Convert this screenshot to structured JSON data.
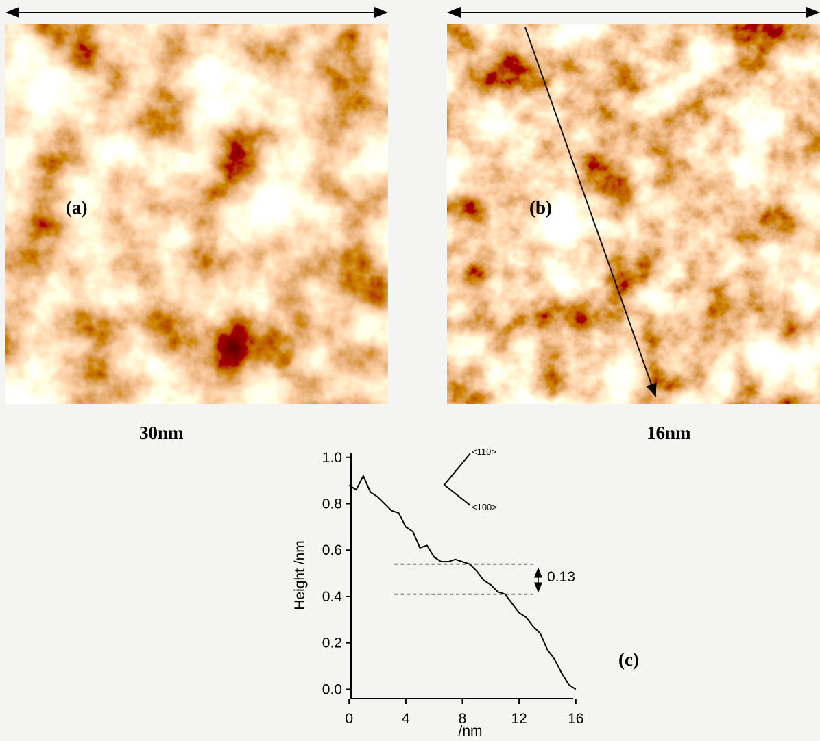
{
  "panels": [
    {
      "label": "(a)",
      "scale": "30nm"
    },
    {
      "label": "(b)",
      "scale": "16nm"
    }
  ],
  "chart_data": {
    "type": "line",
    "label": "(c)",
    "xlabel": "/nm",
    "ylabel": "Height /nm",
    "x": [
      0,
      0.5,
      1,
      1.5,
      2,
      2.5,
      3,
      3.5,
      4,
      4.5,
      5,
      5.5,
      6,
      6.5,
      7,
      7.5,
      8,
      8.5,
      9,
      9.5,
      10,
      10.5,
      11,
      11.5,
      12,
      12.5,
      13,
      13.5,
      14,
      14.5,
      15,
      15.5,
      16
    ],
    "series": [
      {
        "color": "#000000",
        "values": [
          0.88,
          0.86,
          0.92,
          0.85,
          0.83,
          0.8,
          0.77,
          0.76,
          0.7,
          0.68,
          0.61,
          0.62,
          0.57,
          0.55,
          0.55,
          0.56,
          0.55,
          0.54,
          0.51,
          0.47,
          0.45,
          0.42,
          0.41,
          0.37,
          0.33,
          0.31,
          0.27,
          0.24,
          0.17,
          0.13,
          0.07,
          0.02,
          0.0
        ]
      }
    ],
    "xlim": [
      -0.3,
      16.3
    ],
    "xticks": [
      0,
      4,
      8,
      12,
      16
    ],
    "ylim": [
      -0.04,
      1.02
    ],
    "yticks": [
      {
        "value": 0,
        "label": "0.0"
      },
      0.2,
      0.4,
      0.6,
      0.8,
      {
        "value": 1,
        "label": "1.0"
      }
    ],
    "step_lines": [
      0.54,
      0.41
    ],
    "step_label": "0.13",
    "directions": [
      "<11̄0>",
      "<100>"
    ]
  }
}
